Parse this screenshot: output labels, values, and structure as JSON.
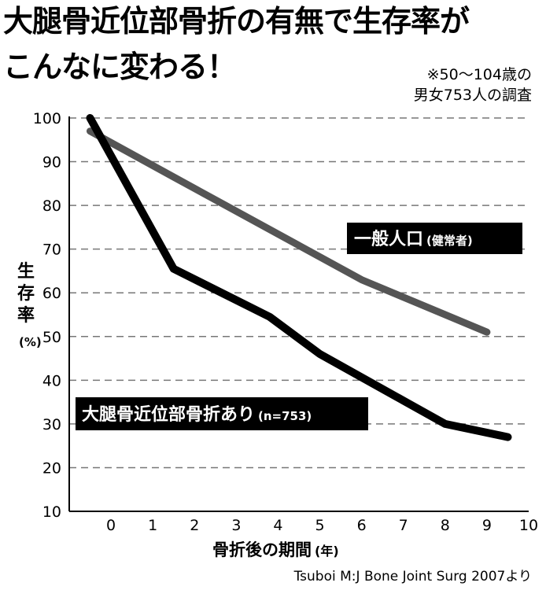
{
  "header": {
    "title_line1": "大腿骨近位部骨折の有無で生存率が",
    "title_line2": "こんなに変わる！",
    "note_line1": "※50～104歳の",
    "note_line2": "男女753人の調査"
  },
  "source": "Tsuboi M:J Bone Joint Surg 2007より",
  "chart_data": {
    "type": "line",
    "xlabel": "骨折後の期間",
    "xlabel_unit": "(年)",
    "ylabel": "生存率",
    "ylabel_unit": "(%)",
    "xlim": [
      -1,
      10
    ],
    "ylim": [
      10,
      100
    ],
    "x_ticks": [
      0,
      1,
      2,
      3,
      4,
      5,
      6,
      7,
      8,
      9,
      10
    ],
    "y_ticks": [
      10,
      20,
      30,
      40,
      50,
      60,
      70,
      80,
      90,
      100
    ],
    "grid": true,
    "series": [
      {
        "name": "一般人口",
        "name_sub": "(健常者)",
        "color": "#555555",
        "x": [
          -0.5,
          1.5,
          6,
          9
        ],
        "y": [
          97,
          86.5,
          63,
          51
        ]
      },
      {
        "name": "大腿骨近位部骨折あり",
        "name_sub": "(n=753)",
        "color": "#000000",
        "x": [
          -0.5,
          1.5,
          3.8,
          5,
          8,
          9.5
        ],
        "y": [
          100,
          65.5,
          54.5,
          46,
          30,
          27
        ]
      }
    ]
  }
}
